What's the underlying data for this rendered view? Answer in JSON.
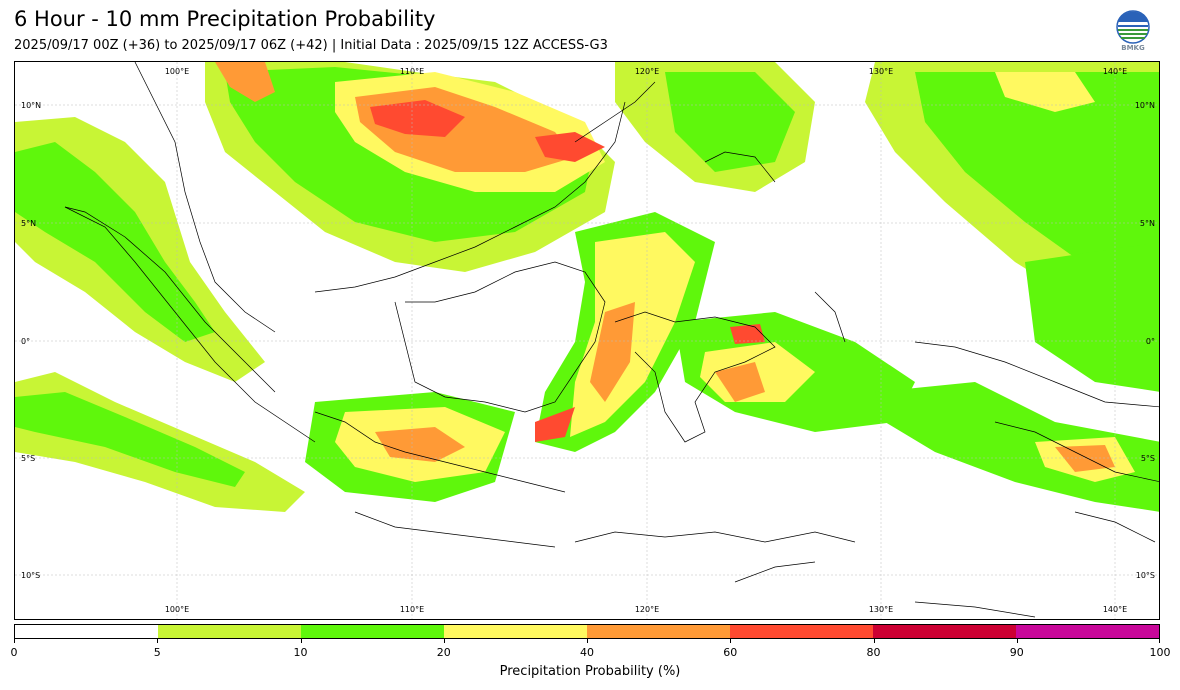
{
  "header": {
    "title": "6 Hour - 10 mm Precipitation Probability",
    "subtitle": "2025/09/17 00Z (+36) to 2025/09/17 06Z (+42) | Initial Data : 2025/09/15 12Z ACCESS-G3"
  },
  "logo": {
    "text": "BMKG"
  },
  "map": {
    "lon_labels_top": [
      "100°E",
      "110°E",
      "120°E",
      "130°E",
      "140°E"
    ],
    "lon_labels_bottom": [
      "100°E",
      "110°E",
      "120°E",
      "130°E",
      "140°E"
    ],
    "lat_labels_left": [
      "10°N",
      "5°N",
      "0°",
      "5°S",
      "10°S"
    ],
    "lat_labels_right": [
      "10°N",
      "5°N",
      "0°",
      "5°S",
      "10°S"
    ]
  },
  "colorbar": {
    "label": "Precipitation Probability (%)",
    "ticks": [
      "0",
      "5",
      "10",
      "20",
      "40",
      "60",
      "80",
      "90",
      "100"
    ],
    "bins": [
      {
        "range": "0-5",
        "color": "#ffffff"
      },
      {
        "range": "5-10",
        "color": "#c8f535"
      },
      {
        "range": "10-20",
        "color": "#5ff70c"
      },
      {
        "range": "20-40",
        "color": "#fff960"
      },
      {
        "range": "40-60",
        "color": "#ff9a36"
      },
      {
        "range": "60-80",
        "color": "#ff4a30"
      },
      {
        "range": "80-90",
        "color": "#cc0033"
      },
      {
        "range": "90-100",
        "color": "#c8089a"
      }
    ]
  }
}
